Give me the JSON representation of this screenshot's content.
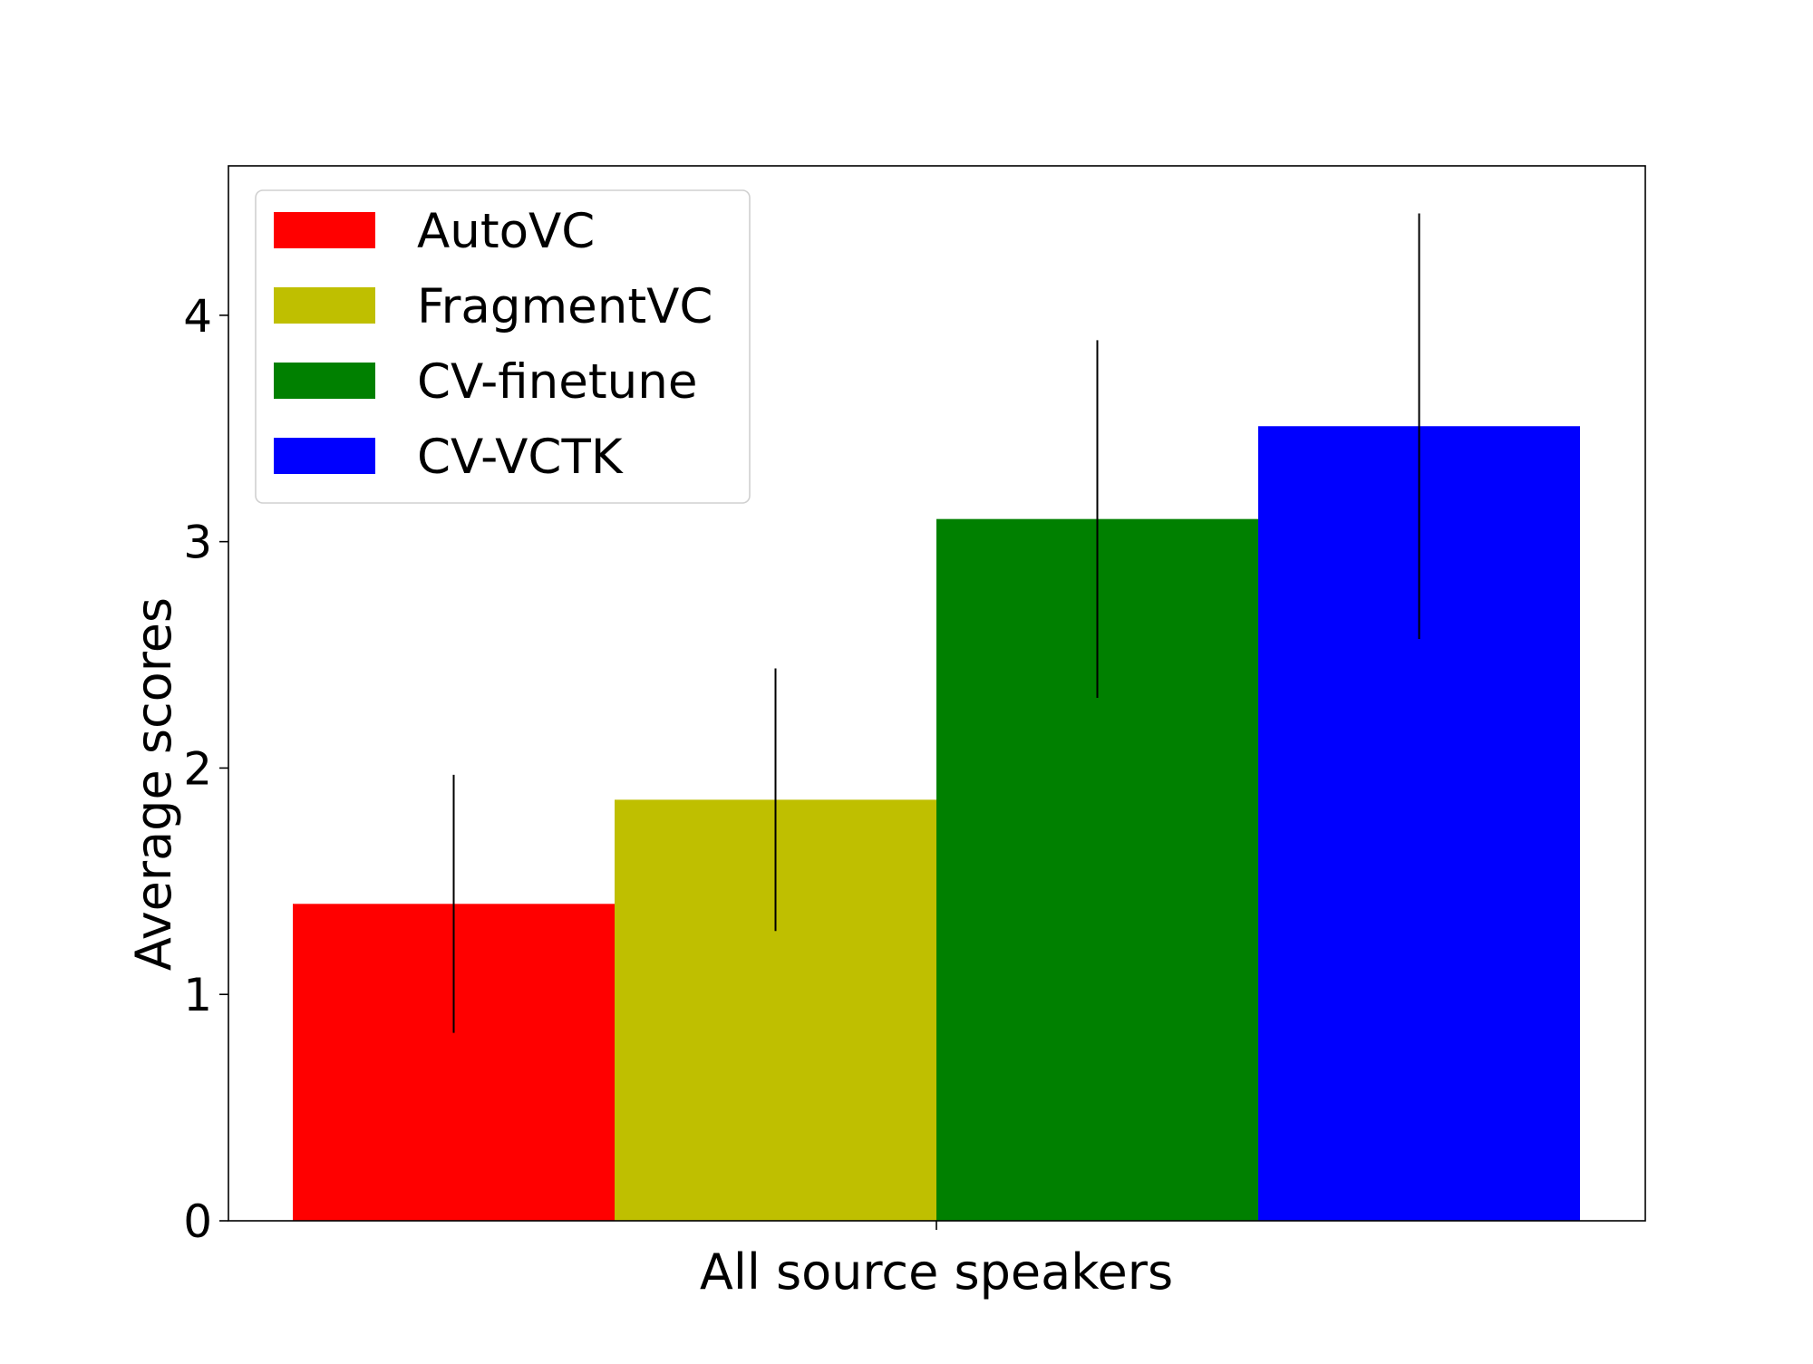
{
  "chart_data": {
    "type": "bar",
    "title": "",
    "xlabel": "All source speakers",
    "ylabel": "Average scores",
    "ylim": [
      0,
      4.66
    ],
    "yticks": [
      0,
      1,
      2,
      3,
      4
    ],
    "grid": false,
    "legend_position": "top-left",
    "categories": [
      "All source speakers"
    ],
    "series": [
      {
        "name": "AutoVC",
        "color": "#ff0000",
        "values": [
          1.4
        ],
        "error": [
          0.57
        ]
      },
      {
        "name": "FragmentVC",
        "color": "#bfbf00",
        "values": [
          1.86
        ],
        "error": [
          0.58
        ]
      },
      {
        "name": "CV-finetune",
        "color": "#008000",
        "values": [
          3.1
        ],
        "error": [
          0.79
        ]
      },
      {
        "name": "CV-VCTK",
        "color": "#0000ff",
        "values": [
          3.51
        ],
        "error": [
          0.94
        ]
      }
    ]
  }
}
